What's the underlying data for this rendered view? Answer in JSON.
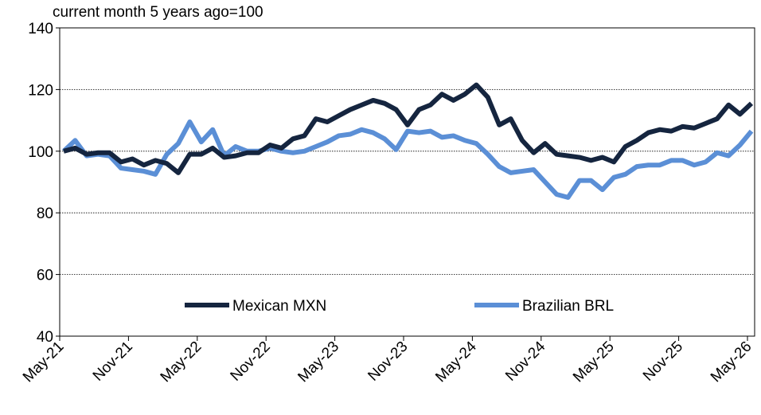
{
  "chart_data": {
    "type": "line",
    "title": "current month 5 years ago=100",
    "categories": [
      "May-21",
      null,
      null,
      null,
      null,
      null,
      "Nov-21",
      null,
      null,
      null,
      null,
      null,
      "May-22",
      null,
      null,
      null,
      null,
      null,
      "Nov-22",
      null,
      null,
      null,
      null,
      null,
      "May-23",
      null,
      null,
      null,
      null,
      null,
      "Nov-23",
      null,
      null,
      null,
      null,
      null,
      "May-24",
      null,
      null,
      null,
      null,
      null,
      "Nov-24",
      null,
      null,
      null,
      null,
      null,
      "May-25",
      null,
      null,
      null,
      null,
      null,
      "Nov-25",
      null,
      null,
      null,
      null,
      null,
      "May-26"
    ],
    "series": [
      {
        "name": "Mexican MXN",
        "color": "#15253f",
        "values": [
          100,
          101,
          99,
          99.5,
          99.5,
          96.5,
          97.5,
          95.5,
          97,
          96,
          93,
          99,
          99,
          101,
          98,
          98.5,
          99.5,
          99.5,
          102,
          101,
          104,
          105,
          110.5,
          109.5,
          111.5,
          113.5,
          115,
          116.5,
          115.5,
          113.5,
          108.5,
          113.5,
          115,
          118.5,
          116.5,
          118.5,
          121.5,
          117.5,
          108.5,
          110.5,
          103.5,
          99.5,
          102.5,
          99,
          98.5,
          98,
          97,
          98,
          96.5,
          101.5,
          103.5,
          106,
          107,
          106.5,
          108,
          107.5,
          109,
          110.5,
          115,
          112,
          115.5
        ]
      },
      {
        "name": "Brazilian BRL",
        "color": "#5b8fd6",
        "values": [
          100,
          103.5,
          98.5,
          99,
          98.5,
          94.5,
          94,
          93.5,
          92.5,
          99,
          102.5,
          109.5,
          103,
          107,
          98.5,
          101.5,
          100,
          100,
          101,
          100,
          99.5,
          100,
          101.5,
          103,
          105,
          105.5,
          107,
          106,
          104,
          100.5,
          106.5,
          106,
          106.5,
          104.5,
          105,
          103.5,
          102.5,
          99,
          95,
          93,
          93.5,
          94,
          90,
          86,
          85,
          90.5,
          90.5,
          87.5,
          91.5,
          92.5,
          95,
          95.5,
          95.5,
          97,
          97,
          95.5,
          96.5,
          99.5,
          98.5,
          102,
          106.5
        ]
      }
    ],
    "ylim": [
      40,
      140
    ],
    "yticks": [
      40,
      60,
      80,
      100,
      120,
      140
    ],
    "grid": true,
    "legend": "lower center"
  }
}
